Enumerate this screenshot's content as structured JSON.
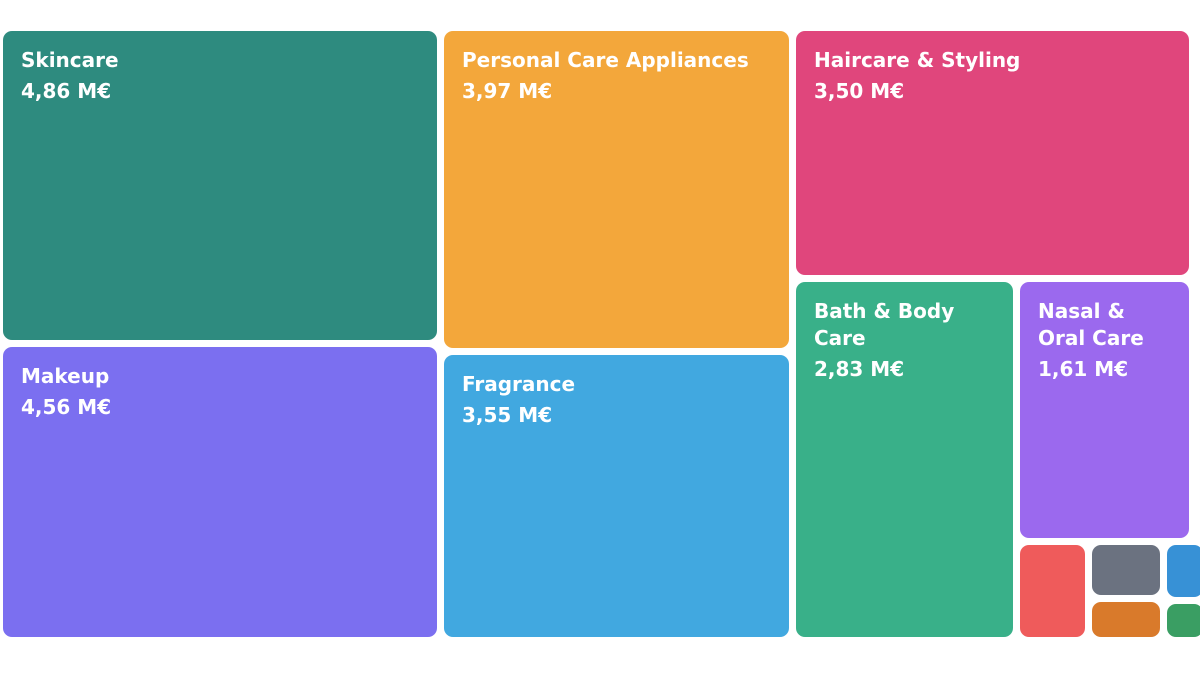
{
  "chart_data": {
    "type": "treemap",
    "unit": "M€",
    "items": [
      {
        "label": "Skincare",
        "value": 4.86,
        "value_label": "4,86 M€",
        "color": "#2e8b7f"
      },
      {
        "label": "Makeup",
        "value": 4.56,
        "value_label": "4,56 M€",
        "color": "#7b6ff0"
      },
      {
        "label": "Personal Care Appliances",
        "value": 3.97,
        "value_label": "3,97 M€",
        "color": "#f3a73b"
      },
      {
        "label": "Fragrance",
        "value": 3.55,
        "value_label": "3,55 M€",
        "color": "#41a8e0"
      },
      {
        "label": "Haircare & Styling",
        "value": 3.5,
        "value_label": "3,50 M€",
        "color": "#e0467c"
      },
      {
        "label": "Bath & Body Care",
        "value": 2.83,
        "value_label": "2,83 M€",
        "color": "#39b089"
      },
      {
        "label": "Nasal & Oral Care",
        "value": 1.61,
        "value_label": "1,61 M€",
        "color": "#9b69ee"
      },
      {
        "label": "",
        "value": 0.4,
        "value_label": "",
        "color": "#ef5b5b"
      },
      {
        "label": "",
        "value": 0.32,
        "value_label": "",
        "color": "#6b7280"
      },
      {
        "label": "",
        "value": 0.23,
        "value_label": "",
        "color": "#d97a2b"
      },
      {
        "label": "",
        "value": 0.09,
        "value_label": "",
        "color": "#3791d6"
      },
      {
        "label": "",
        "value": 0.07,
        "value_label": "",
        "color": "#3a9e63"
      }
    ]
  }
}
